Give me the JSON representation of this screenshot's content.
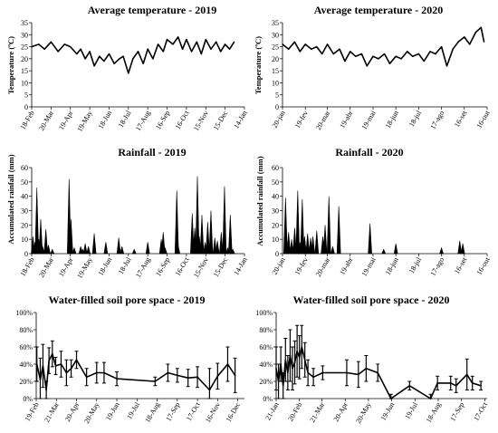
{
  "chart_data": [
    {
      "id": "temp2019",
      "type": "line",
      "title": "Average temperature - 2019",
      "ylabel": "Temperature (ºC)",
      "xlabel": "",
      "ylim": [
        0,
        35
      ],
      "yticks": [
        "0",
        "5",
        "10",
        "15",
        "20",
        "25",
        "30",
        "35"
      ],
      "x_tick_labels": [
        "18-Feb",
        "20-Mar",
        "19-Apr",
        "19-May",
        "18-Jun",
        "18-Jul",
        "17-Aug",
        "16-Sep",
        "16-Oct",
        "15-Nov",
        "15-Dec",
        "14-Jan"
      ],
      "x_range": [
        "18-Feb",
        "14-Jan"
      ],
      "grid": false,
      "series": [
        {
          "x": [
            "18-Feb",
            "01-Mar",
            "10-Mar",
            "20-Mar",
            "31-Mar",
            "10-Apr",
            "19-Apr",
            "29-Apr",
            "05-May",
            "12-May",
            "19-May",
            "26-May",
            "03-Jun",
            "10-Jun",
            "18-Jun",
            "26-Jun",
            "04-Jul",
            "10-Jul",
            "18-Jul",
            "25-Jul",
            "02-Aug",
            "10-Aug",
            "17-Aug",
            "25-Aug",
            "02-Sep",
            "10-Sep",
            "16-Sep",
            "25-Sep",
            "03-Oct",
            "10-Oct",
            "16-Oct",
            "24-Oct",
            "01-Nov",
            "08-Nov",
            "15-Nov",
            "23-Nov",
            "01-Dec",
            "08-Dec",
            "15-Dec",
            "22-Dec",
            "29-Dec"
          ],
          "values": [
            25,
            26,
            24,
            27,
            23,
            26,
            25,
            22,
            24,
            20,
            23,
            17,
            21,
            19,
            22,
            18,
            20,
            21,
            14,
            20,
            23,
            18,
            24,
            20,
            26,
            23,
            28,
            26,
            29,
            24,
            28,
            23,
            27,
            22,
            28,
            24,
            27,
            23,
            26,
            24,
            27
          ]
        }
      ]
    },
    {
      "id": "temp2020",
      "type": "line",
      "title": "Average temperature - 2020",
      "ylabel": "Temperature (ºC)",
      "xlabel": "",
      "ylim": [
        0,
        35
      ],
      "yticks": [
        "0",
        "5",
        "10",
        "15",
        "20",
        "25",
        "30",
        "35"
      ],
      "x_tick_labels": [
        "20-jan",
        "19-fev",
        "20-mar",
        "19-abr",
        "19-mai",
        "18-jun",
        "18-jul",
        "17-ago",
        "16-set",
        "16-out"
      ],
      "x_range": [
        "20-jan",
        "16-out"
      ],
      "grid": false,
      "series": [
        {
          "x": [
            "20-jan",
            "28-jan",
            "05-fev",
            "12-fev",
            "19-fev",
            "27-fev",
            "06-mar",
            "13-mar",
            "20-mar",
            "28-mar",
            "05-abr",
            "12-abr",
            "19-abr",
            "26-abr",
            "04-mai",
            "11-mai",
            "19-mai",
            "26-mai",
            "03-jun",
            "10-jun",
            "18-jun",
            "25-jun",
            "03-jul",
            "10-jul",
            "18-jul",
            "25-jul",
            "02-ago",
            "09-ago",
            "17-ago",
            "24-ago",
            "01-set",
            "08-set",
            "16-set",
            "23-set",
            "01-out",
            "08-out",
            "12-out"
          ],
          "values": [
            26,
            24,
            27,
            23,
            26,
            24,
            25,
            22,
            26,
            22,
            24,
            19,
            23,
            21,
            22,
            17,
            21,
            20,
            22,
            18,
            21,
            20,
            23,
            21,
            22,
            19,
            23,
            22,
            25,
            17,
            24,
            27,
            29,
            26,
            31,
            33,
            27
          ]
        }
      ]
    },
    {
      "id": "rain2019",
      "type": "bar",
      "title": "Rainfall - 2019",
      "ylabel": "Accumulated rainfall (mm)",
      "xlabel": "",
      "ylim": [
        0,
        60
      ],
      "yticks": [
        "0",
        "10",
        "20",
        "30",
        "40",
        "50",
        "60"
      ],
      "x_tick_labels": [
        "18-Feb",
        "20-Mar",
        "19-Apr",
        "19-May",
        "18-Jun",
        "18-Jul",
        "17-Aug",
        "16-Sep",
        "16-Oct",
        "15-Nov",
        "15-Dec",
        "14-Jan"
      ],
      "x_range": [
        "18-Feb",
        "14-Jan"
      ],
      "grid": false,
      "series": [
        {
          "x": [
            "20-Feb",
            "23-Feb",
            "26-Feb",
            "01-Mar",
            "04-Mar",
            "07-Mar",
            "12-Mar",
            "16-Mar",
            "22-Mar",
            "17-Apr",
            "20-Apr",
            "25-Apr",
            "05-May",
            "08-May",
            "12-May",
            "17-May",
            "26-May",
            "13-Jun",
            "03-Jul",
            "08-Jul",
            "27-Jul",
            "17-Aug",
            "07-Sep",
            "10-Sep",
            "13-Sep",
            "01-Oct",
            "03-Oct",
            "25-Oct",
            "29-Oct",
            "02-Nov",
            "05-Nov",
            "09-Nov",
            "14-Nov",
            "18-Nov",
            "23-Nov",
            "29-Nov",
            "03-Dec",
            "09-Dec",
            "14-Dec",
            "19-Dec",
            "23-Dec",
            "27-Dec"
          ],
          "values": [
            12,
            8,
            46,
            10,
            24,
            5,
            17,
            6,
            3,
            52,
            24,
            4,
            5,
            3,
            7,
            5,
            14,
            8,
            11,
            5,
            3,
            8,
            10,
            15,
            4,
            44,
            6,
            28,
            18,
            54,
            12,
            27,
            8,
            22,
            30,
            11,
            9,
            15,
            47,
            4,
            27,
            3
          ]
        }
      ]
    },
    {
      "id": "rain2020",
      "type": "bar",
      "title": "Rainfall - 2020",
      "ylabel": "Accumulated rainfall (mm)",
      "xlabel": "",
      "ylim": [
        0,
        60
      ],
      "yticks": [
        "0",
        "10",
        "20",
        "30",
        "40",
        "50",
        "60"
      ],
      "x_tick_labels": [
        "20-jan",
        "19-fev",
        "20-mar",
        "19-abr",
        "19-mai",
        "18-jun",
        "18-jul",
        "17-ago",
        "16-set",
        "16-out"
      ],
      "x_range": [
        "20-jan",
        "16-out"
      ],
      "grid": false,
      "series": [
        {
          "x": [
            "24-jan",
            "28-jan",
            "01-fev",
            "05-fev",
            "09-fev",
            "12-fev",
            "15-fev",
            "18-fev",
            "22-fev",
            "26-fev",
            "01-mar",
            "06-mar",
            "14-mar",
            "17-mar",
            "22-mar",
            "27-mar",
            "04-abr",
            "15-mai",
            "02-jun",
            "18-jun",
            "17-ago",
            "10-set",
            "14-set"
          ],
          "values": [
            39,
            15,
            10,
            18,
            44,
            8,
            38,
            12,
            14,
            11,
            12,
            16,
            12,
            20,
            40,
            5,
            33,
            21,
            3,
            7,
            4,
            9,
            7
          ]
        }
      ]
    },
    {
      "id": "wfps2019",
      "type": "line",
      "title": "Water-filled soil pore space - 2019",
      "ylabel": "",
      "xlabel": "",
      "ylim": [
        0,
        100
      ],
      "yticks": [
        "0%",
        "20%",
        "40%",
        "60%",
        "80%",
        "100%"
      ],
      "x_tick_labels": [
        "19-Feb",
        "21-Mar",
        "20-Apr",
        "20-May",
        "19-Jun",
        "19-Jul",
        "18-Aug",
        "17-Sep",
        "17-Oct",
        "16-Nov",
        "16-Dec"
      ],
      "x_range": [
        "19-Feb",
        "26-Dec"
      ],
      "grid": false,
      "series": [
        {
          "x": [
            "20-Feb",
            "25-Feb",
            "01-Mar",
            "06-Mar",
            "10-Mar",
            "15-Mar",
            "20-Mar",
            "28-Mar",
            "05-Apr",
            "12-Apr",
            "20-Apr",
            "05-May",
            "20-May",
            "31-May",
            "19-Jun",
            "15-Aug",
            "03-Sep",
            "17-Sep",
            "03-Oct",
            "17-Oct",
            "04-Nov",
            "16-Nov",
            "01-Dec",
            "12-Dec"
          ],
          "values": [
            40,
            22,
            38,
            10,
            44,
            52,
            38,
            40,
            30,
            35,
            45,
            25,
            30,
            30,
            23,
            20,
            30,
            27,
            24,
            25,
            10,
            26,
            40,
            27
          ],
          "error": [
            20,
            25,
            25,
            10,
            15,
            15,
            10,
            15,
            15,
            10,
            10,
            10,
            12,
            12,
            8,
            5,
            10,
            8,
            10,
            12,
            25,
            15,
            20,
            20
          ]
        }
      ]
    },
    {
      "id": "wfps2020",
      "type": "line",
      "title": "Water-filled soil pore space - 2020",
      "ylabel": "",
      "xlabel": "",
      "ylim": [
        0,
        100
      ],
      "yticks": [
        "0%",
        "20%",
        "40%",
        "60%",
        "80%",
        "100%"
      ],
      "x_tick_labels": [
        "21-Jan",
        "20-Feb",
        "21-Mar",
        "20-Apr",
        "20-May",
        "19-Jun",
        "19-Jul",
        "18-Aug",
        "17-Sep",
        "17-Oct"
      ],
      "x_range": [
        "21-Jan",
        "20-Oct"
      ],
      "grid": false,
      "series": [
        {
          "x": [
            "21-Jan",
            "24-Jan",
            "27-Jan",
            "30-Jan",
            "02-Feb",
            "05-Feb",
            "08-Feb",
            "11-Feb",
            "14-Feb",
            "17-Feb",
            "20-Feb",
            "23-Feb",
            "27-Feb",
            "03-Mar",
            "10-Mar",
            "22-Mar",
            "22-Apr",
            "07-May",
            "17-May",
            "01-Jun",
            "18-Jun",
            "12-Jul",
            "08-Aug",
            "17-Aug",
            "03-Sep",
            "10-Sep",
            "24-Sep",
            "01-Oct",
            "12-Oct"
          ],
          "values": [
            35,
            20,
            40,
            15,
            45,
            30,
            50,
            35,
            42,
            55,
            48,
            60,
            45,
            30,
            25,
            30,
            30,
            28,
            35,
            30,
            0,
            15,
            0,
            18,
            18,
            15,
            28,
            18,
            15
          ],
          "error": [
            25,
            20,
            20,
            15,
            25,
            20,
            30,
            25,
            25,
            30,
            25,
            25,
            20,
            15,
            10,
            8,
            15,
            15,
            15,
            10,
            5,
            5,
            5,
            8,
            8,
            8,
            18,
            8,
            5
          ]
        }
      ]
    }
  ]
}
